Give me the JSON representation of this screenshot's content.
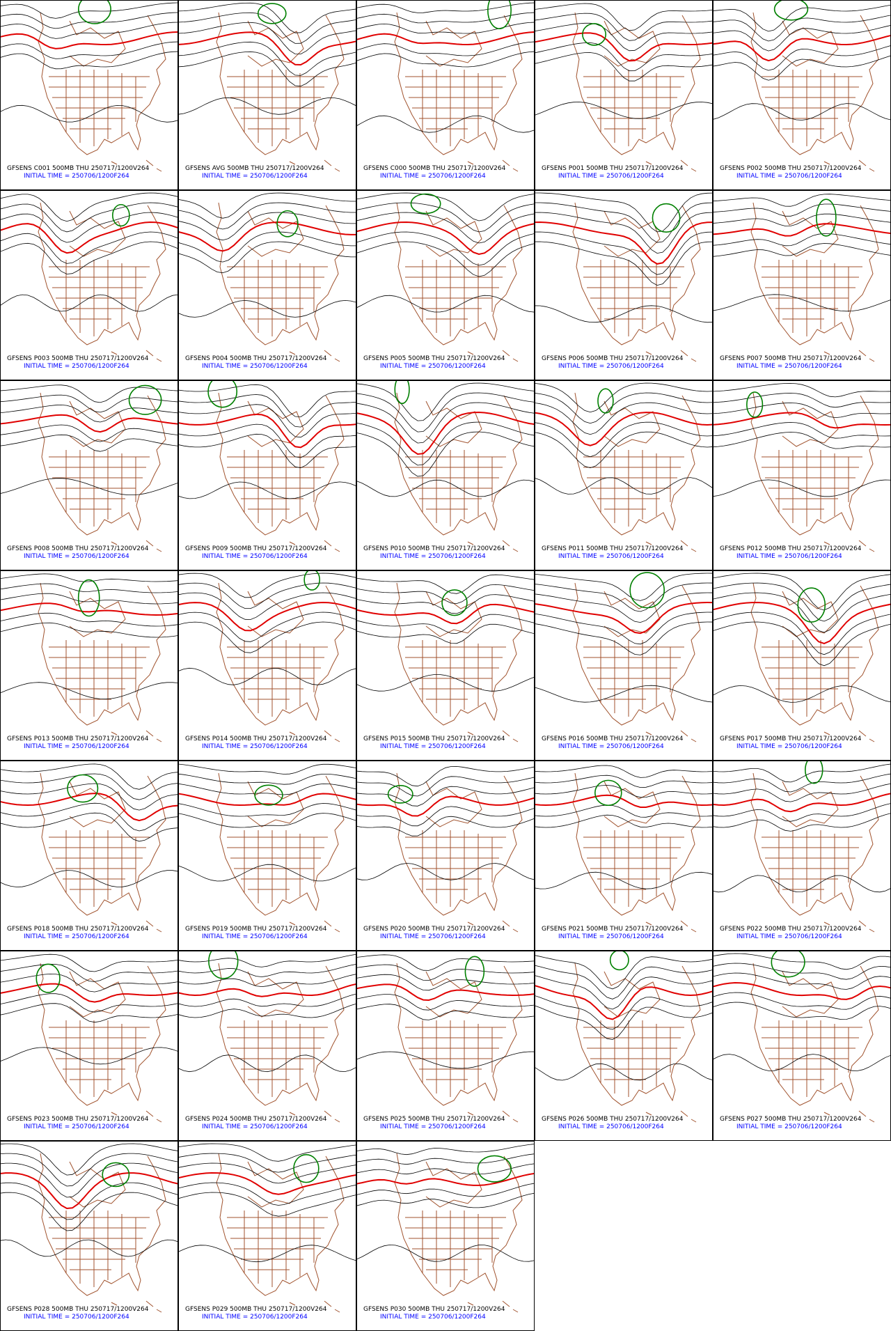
{
  "panels": [
    {
      "title": "GFSENS C001 500MB THU 250717/1200V264",
      "init": "INITIAL TIME = 250706/1200F264"
    },
    {
      "title": "GFSENS AVG 500MB THU 250717/1200V264",
      "init": "INITIAL TIME = 250706/1200F264"
    },
    {
      "title": "GFSENS C000 500MB THU 250717/1200V264",
      "init": "INITIAL TIME = 250706/1200F264"
    },
    {
      "title": "GFSENS P001 500MB THU 250717/1200V264",
      "init": "INITIAL TIME = 250706/1200F264"
    },
    {
      "title": "GFSENS P002 500MB THU 250717/1200V264",
      "init": "INITIAL TIME = 250706/1200F264"
    },
    {
      "title": "GFSENS P003 500MB THU 250717/1200V264",
      "init": "INITIAL TIME = 250706/1200F264"
    },
    {
      "title": "GFSENS P004 500MB THU 250717/1200V264",
      "init": "INITIAL TIME = 250706/1200F264"
    },
    {
      "title": "GFSENS P005 500MB THU 250717/1200V264",
      "init": "INITIAL TIME = 250706/1200F264"
    },
    {
      "title": "GFSENS P006 500MB THU 250717/1200V264",
      "init": "INITIAL TIME = 250706/1200F264"
    },
    {
      "title": "GFSENS P007 500MB THU 250717/1200V264",
      "init": "INITIAL TIME = 250706/1200F264"
    },
    {
      "title": "GFSENS P008 500MB THU 250717/1200V264",
      "init": "INITIAL TIME = 250706/1200F264"
    },
    {
      "title": "GFSENS P009 500MB THU 250717/1200V264",
      "init": "INITIAL TIME = 250706/1200F264"
    },
    {
      "title": "GFSENS P010 500MB THU 250717/1200V264",
      "init": "INITIAL TIME = 250706/1200F264"
    },
    {
      "title": "GFSENS P011 500MB THU 250717/1200V264",
      "init": "INITIAL TIME = 250706/1200F264"
    },
    {
      "title": "GFSENS P012 500MB THU 250717/1200V264",
      "init": "INITIAL TIME = 250706/1200F264"
    },
    {
      "title": "GFSENS P013 500MB THU 250717/1200V264",
      "init": "INITIAL TIME = 250706/1200F264"
    },
    {
      "title": "GFSENS P014 500MB THU 250717/1200V264",
      "init": "INITIAL TIME = 250706/1200F264"
    },
    {
      "title": "GFSENS P015 500MB THU 250717/1200V264",
      "init": "INITIAL TIME = 250706/1200F264"
    },
    {
      "title": "GFSENS P016 500MB THU 250717/1200V264",
      "init": "INITIAL TIME = 250706/1200F264"
    },
    {
      "title": "GFSENS P017 500MB THU 250717/1200V264",
      "init": "INITIAL TIME = 250706/1200F264"
    },
    {
      "title": "GFSENS P018 500MB THU 250717/1200V264",
      "init": "INITIAL TIME = 250706/1200F264"
    },
    {
      "title": "GFSENS P019 500MB THU 250717/1200V264",
      "init": "INITIAL TIME = 250706/1200F264"
    },
    {
      "title": "GFSENS P020 500MB THU 250717/1200V264",
      "init": "INITIAL TIME = 250706/1200F264"
    },
    {
      "title": "GFSENS P021 500MB THU 250717/1200V264",
      "init": "INITIAL TIME = 250706/1200F264"
    },
    {
      "title": "GFSENS P022 500MB THU 250717/1200V264",
      "init": "INITIAL TIME = 250706/1200F264"
    },
    {
      "title": "GFSENS P023 500MB THU 250717/1200V264",
      "init": "INITIAL TIME = 250706/1200F264"
    },
    {
      "title": "GFSENS P024 500MB THU 250717/1200V264",
      "init": "INITIAL TIME = 250706/1200F264"
    },
    {
      "title": "GFSENS P025 500MB THU 250717/1200V264",
      "init": "INITIAL TIME = 250706/1200F264"
    },
    {
      "title": "GFSENS P026 500MB THU 250717/1200V264",
      "init": "INITIAL TIME = 250706/1200F264"
    },
    {
      "title": "GFSENS P027 500MB THU 250717/1200V264",
      "init": "INITIAL TIME = 250706/1200F264"
    },
    {
      "title": "GFSENS P028 500MB THU 250717/1200V264",
      "init": "INITIAL TIME = 250706/1200F264"
    },
    {
      "title": "GFSENS P029 500MB THU 250717/1200V264",
      "init": "INITIAL TIME = 250706/1200F264"
    },
    {
      "title": "GFSENS P030 500MB THU 250717/1200V264",
      "init": "INITIAL TIME = 250706/1200F264"
    }
  ]
}
